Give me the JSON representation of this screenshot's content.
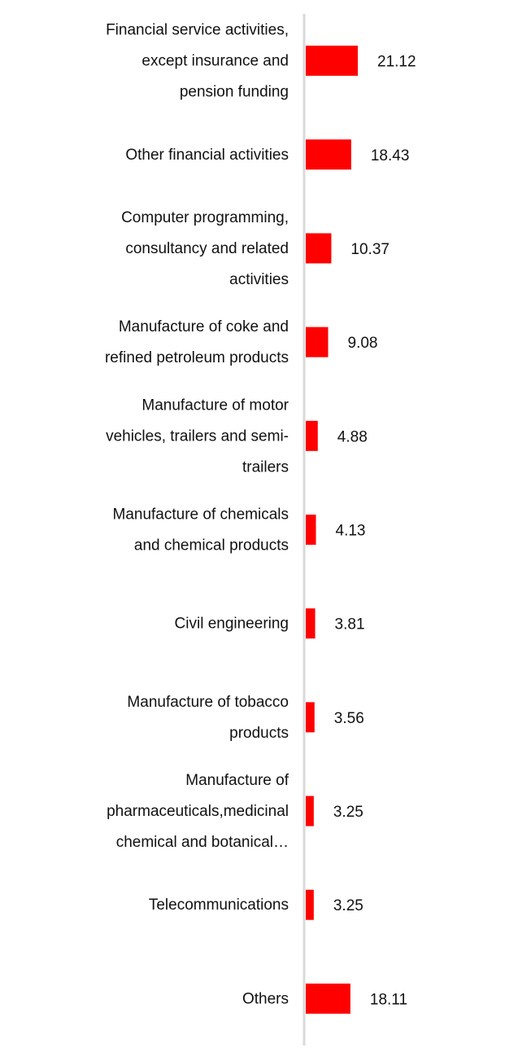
{
  "chart_data": {
    "type": "bar",
    "orientation": "horizontal",
    "title": "",
    "xlabel": "",
    "ylabel": "",
    "grid": false,
    "legend": "none",
    "bar_color": "#ff0000",
    "axis_color": "#d9d9d9",
    "categories": [
      "Financial service activities, except insurance and pension funding",
      "Other financial activities",
      "Computer programming, consultancy and related activities",
      "Manufacture of coke and refined petroleum products",
      "Manufacture of motor vehicles, trailers and semi-trailers",
      "Manufacture of chemicals and chemical products",
      "Civil engineering",
      "Manufacture of tobacco products",
      "Manufacture of pharmaceuticals,medicinal chemical and botanical…",
      "Telecommunications",
      "Others"
    ],
    "category_display_lines": [
      [
        "Financial service activities,",
        "except insurance and",
        "pension funding"
      ],
      [
        "Other financial activities"
      ],
      [
        "Computer programming,",
        "consultancy and related",
        "activities"
      ],
      [
        "Manufacture of coke and",
        "refined petroleum products"
      ],
      [
        "Manufacture of motor",
        "vehicles, trailers and semi-",
        "trailers"
      ],
      [
        "Manufacture of chemicals",
        "and chemical products"
      ],
      [
        "Civil engineering"
      ],
      [
        "Manufacture of tobacco",
        "products"
      ],
      [
        "Manufacture of",
        "pharmaceuticals,medicinal",
        "chemical and botanical…"
      ],
      [
        "Telecommunications"
      ],
      [
        "Others"
      ]
    ],
    "values": [
      21.12,
      18.43,
      10.37,
      9.08,
      4.88,
      4.13,
      3.81,
      3.56,
      3.25,
      3.25,
      18.11
    ],
    "value_labels": [
      "21.12",
      "18.43",
      "10.37",
      "9.08",
      "4.88",
      "4.13",
      "3.81",
      "3.56",
      "3.25",
      "3.25",
      "18.11"
    ],
    "xlim": [
      0,
      22
    ]
  }
}
